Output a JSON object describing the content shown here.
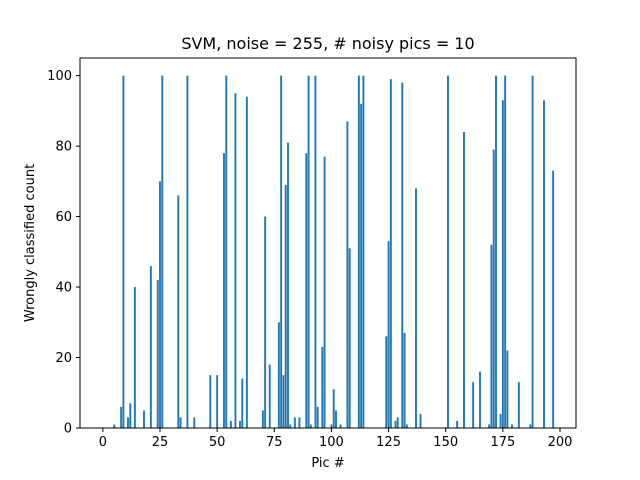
{
  "chart_data": {
    "type": "bar",
    "title": "SVM, noise = 255, # noisy pics = 10",
    "xlabel": "Pic #",
    "ylabel": "Wrongly classified count",
    "xlim": [
      -10,
      207
    ],
    "ylim": [
      0,
      105
    ],
    "xticks": [
      0,
      25,
      50,
      75,
      100,
      125,
      150,
      175,
      200
    ],
    "yticks": [
      0,
      20,
      40,
      60,
      80,
      100
    ],
    "grid": false,
    "bar_color": "#1f77b4",
    "series": [
      {
        "x": [
          5,
          8,
          9,
          11,
          12,
          14,
          18,
          21,
          24,
          25,
          26,
          33,
          34,
          37,
          40,
          47,
          50,
          53,
          54,
          56,
          58,
          60,
          61,
          63,
          70,
          71,
          73,
          77,
          78,
          79,
          80,
          81,
          82,
          84,
          86,
          89,
          90,
          91,
          93,
          94,
          96,
          97,
          100,
          101,
          102,
          104,
          107,
          108,
          112,
          113,
          114,
          124,
          125,
          126,
          128,
          129,
          131,
          132,
          133,
          137,
          139,
          151,
          155,
          158,
          162,
          165,
          169,
          170,
          171,
          172,
          174,
          175,
          176,
          177,
          179,
          182,
          187,
          188,
          193,
          197
        ],
        "values": [
          1,
          6,
          100,
          3,
          7,
          40,
          5,
          46,
          42,
          70,
          100,
          66,
          3,
          100,
          3,
          15,
          15,
          78,
          100,
          2,
          95,
          2,
          14,
          94,
          5,
          60,
          18,
          30,
          100,
          15,
          69,
          81,
          1,
          3,
          3,
          78,
          100,
          1,
          100,
          6,
          23,
          77,
          1,
          11,
          5,
          1,
          87,
          51,
          100,
          92,
          100,
          26,
          53,
          99,
          2,
          3,
          98,
          27,
          1,
          68,
          4,
          100,
          2,
          84,
          13,
          16,
          1,
          52,
          79,
          100,
          4,
          93,
          100,
          22,
          1,
          13,
          1,
          100,
          93,
          73
        ]
      }
    ]
  }
}
